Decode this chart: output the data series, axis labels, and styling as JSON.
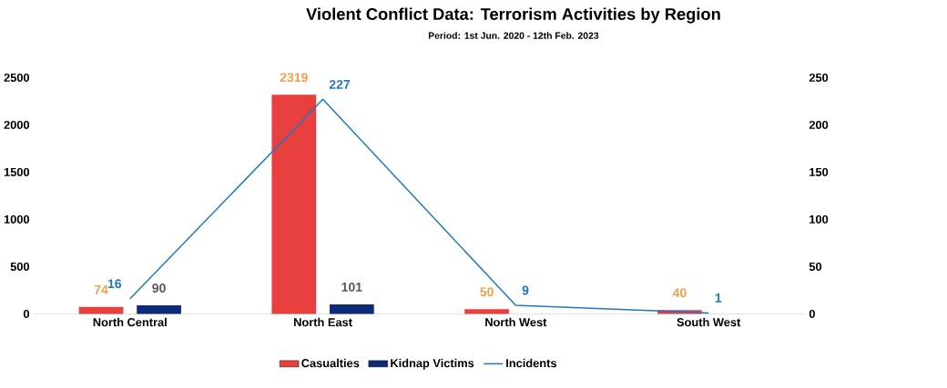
{
  "chart_data": {
    "type": "bar",
    "title": "Violent Conflict Data: Terrorism Activities by Region",
    "subtitle": "Period: 1st Jun. 2020 - 12th Feb. 2023",
    "categories": [
      "North Central",
      "North East",
      "North West",
      "South West"
    ],
    "series": [
      {
        "name": "Casualties",
        "color": "#e8403f",
        "values": [
          74,
          2319,
          50,
          40
        ]
      },
      {
        "name": "Kidnap Victims",
        "color": "#0e2a78",
        "values": [
          90,
          101,
          null,
          null
        ]
      },
      {
        "name": "Incidents",
        "type": "line",
        "axis": "y2",
        "color": "#1f77c4",
        "values": [
          16,
          227,
          9,
          1
        ]
      }
    ],
    "ylim": [
      0,
      2500
    ],
    "yticks": [
      0,
      500,
      1000,
      1500,
      2000,
      2500
    ],
    "y2lim": [
      0,
      250
    ],
    "y2ticks": [
      0,
      50,
      100,
      150,
      200,
      250
    ],
    "data_labels": true,
    "legend": "bottom"
  }
}
